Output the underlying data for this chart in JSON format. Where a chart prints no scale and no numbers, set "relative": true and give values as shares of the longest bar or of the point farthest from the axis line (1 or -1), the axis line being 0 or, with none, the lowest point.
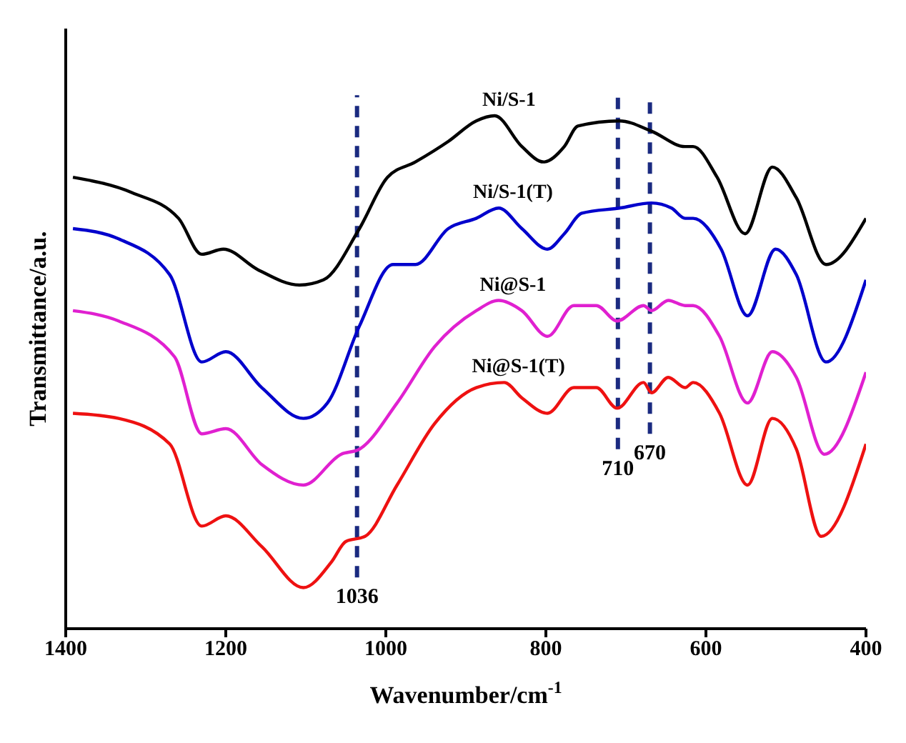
{
  "chart_data": {
    "type": "line",
    "relative": true,
    "xlabel": "Wavenumber/cm$^{-1}$",
    "ylabel": "Transmittance/a.u.",
    "xlim": [
      1400,
      400
    ],
    "xticks": [
      1400,
      1200,
      1000,
      800,
      600,
      400
    ],
    "marker": "none",
    "line_style": "solid",
    "series": [
      {
        "name": "Ni/S-1",
        "color": "#000000",
        "x": [
          1391,
          1317,
          1259,
          1230,
          1203,
          1160,
          1108,
          1078,
          1033,
          998,
          963,
          922,
          887,
          864,
          830,
          803,
          777,
          760,
          708,
          668,
          626,
          616,
          586,
          551,
          517,
          487,
          450,
          400
        ],
        "values": [
          0.88,
          0.85,
          0.8,
          0.73,
          0.74,
          0.7,
          0.67,
          0.68,
          0.78,
          0.88,
          0.91,
          0.95,
          0.99,
          1.0,
          0.94,
          0.91,
          0.94,
          0.98,
          0.99,
          0.97,
          0.94,
          0.94,
          0.88,
          0.77,
          0.9,
          0.84,
          0.71,
          0.8
        ]
      },
      {
        "name": "Ni/S-1(T)",
        "color": "#0000cc",
        "x": [
          1391,
          1334,
          1270,
          1230,
          1200,
          1155,
          1103,
          1073,
          1033,
          991,
          963,
          922,
          887,
          859,
          830,
          798,
          777,
          755,
          708,
          668,
          643,
          626,
          616,
          581,
          548,
          513,
          487,
          450,
          400
        ],
        "values": [
          0.78,
          0.76,
          0.69,
          0.52,
          0.54,
          0.47,
          0.41,
          0.44,
          0.59,
          0.71,
          0.71,
          0.78,
          0.8,
          0.82,
          0.78,
          0.74,
          0.77,
          0.81,
          0.82,
          0.83,
          0.82,
          0.8,
          0.8,
          0.74,
          0.61,
          0.74,
          0.69,
          0.52,
          0.68
        ]
      },
      {
        "name": "Ni@S-1",
        "color": "#e020d0",
        "x": [
          1391,
          1334,
          1264,
          1230,
          1200,
          1155,
          1103,
          1056,
          1033,
          986,
          939,
          887,
          859,
          830,
          798,
          765,
          737,
          711,
          678,
          668,
          647,
          626,
          616,
          583,
          548,
          517,
          487,
          452,
          400
        ],
        "values": [
          0.62,
          0.6,
          0.53,
          0.38,
          0.39,
          0.32,
          0.28,
          0.34,
          0.35,
          0.44,
          0.55,
          0.62,
          0.64,
          0.62,
          0.57,
          0.63,
          0.63,
          0.6,
          0.63,
          0.62,
          0.64,
          0.63,
          0.63,
          0.57,
          0.44,
          0.54,
          0.49,
          0.34,
          0.5
        ]
      },
      {
        "name": "Ni@S-1(T)",
        "color": "#ee1111",
        "x": [
          1391,
          1334,
          1270,
          1230,
          1200,
          1155,
          1103,
          1068,
          1050,
          1026,
          986,
          939,
          887,
          852,
          830,
          798,
          765,
          737,
          711,
          678,
          668,
          647,
          626,
          616,
          583,
          548,
          517,
          487,
          456,
          400
        ],
        "values": [
          0.42,
          0.41,
          0.36,
          0.2,
          0.22,
          0.16,
          0.08,
          0.13,
          0.17,
          0.18,
          0.28,
          0.4,
          0.47,
          0.48,
          0.45,
          0.42,
          0.47,
          0.47,
          0.43,
          0.48,
          0.46,
          0.49,
          0.47,
          0.48,
          0.42,
          0.28,
          0.41,
          0.35,
          0.18,
          0.36
        ]
      }
    ],
    "ref_lines": [
      {
        "axis": "x",
        "value": 1036,
        "label": "1036",
        "color": "#1a2a80",
        "line_style": "dashed"
      },
      {
        "axis": "x",
        "value": 710,
        "label": "710",
        "color": "#1a2a80",
        "line_style": "dashed"
      },
      {
        "axis": "x",
        "value": 670,
        "label": "670",
        "color": "#1a2a80",
        "line_style": "dashed"
      }
    ]
  }
}
